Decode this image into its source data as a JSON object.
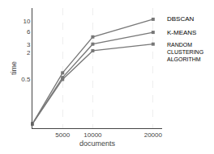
{
  "chart_data": {
    "type": "line",
    "xlabel": "documents",
    "ylabel": "time",
    "x": [
      0,
      5000,
      10000,
      20000
    ],
    "series": [
      {
        "name": "DBSCAN",
        "color": "#777777",
        "values": [
          0.05,
          0.7,
          4.5,
          11.2
        ]
      },
      {
        "name": "K-MEANS",
        "color": "#777777",
        "values": [
          0.05,
          0.55,
          3.1,
          5.7
        ]
      },
      {
        "name": "RANDOM\nCLUSTERING\nALGORITHM",
        "color": "#777777",
        "values": [
          0.05,
          0.5,
          2.2,
          3.1
        ]
      }
    ],
    "xlim": [
      0,
      21500
    ],
    "xticks": [
      5000,
      10000,
      20000
    ],
    "ylim": [
      0.04,
      20
    ],
    "yticks": [
      0.5,
      2,
      3,
      6,
      10
    ],
    "log": "y",
    "grid": "x",
    "marker": "square",
    "line_style": "solid"
  }
}
